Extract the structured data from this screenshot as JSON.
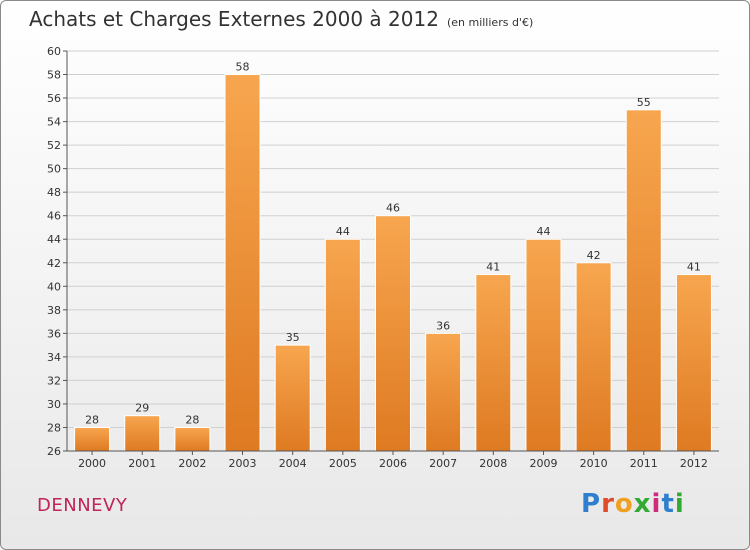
{
  "header": {
    "title": "Achats et Charges Externes 2000 à 2012",
    "subtitle": "(en milliers d'€)"
  },
  "footer": {
    "commune": "DENNEVY",
    "brand_letters": [
      "P",
      "r",
      "o",
      "x",
      "i",
      "t",
      "i"
    ],
    "brand_colors": [
      "#2f7fd0",
      "#e04b2a",
      "#f0a020",
      "#33aa33",
      "#d02a7a",
      "#2f7fd0",
      "#33aa33"
    ]
  },
  "colors": {
    "bar_light": "#f7a64f",
    "bar_dark": "#de7a22",
    "grid": "#d0d0d0"
  },
  "chart_data": {
    "type": "bar",
    "categories": [
      "2000",
      "2001",
      "2002",
      "2003",
      "2004",
      "2005",
      "2006",
      "2007",
      "2008",
      "2009",
      "2010",
      "2011",
      "2012"
    ],
    "values": [
      28,
      29,
      28,
      58,
      35,
      44,
      46,
      36,
      41,
      44,
      42,
      55,
      41
    ],
    "title": "Achats et Charges Externes 2000 à 2012",
    "xlabel": "",
    "ylabel": "",
    "ylim": [
      26,
      60
    ],
    "yticks": [
      26,
      28,
      30,
      32,
      34,
      36,
      38,
      40,
      42,
      44,
      46,
      48,
      50,
      52,
      54,
      56,
      58,
      60
    ],
    "grid": true
  }
}
